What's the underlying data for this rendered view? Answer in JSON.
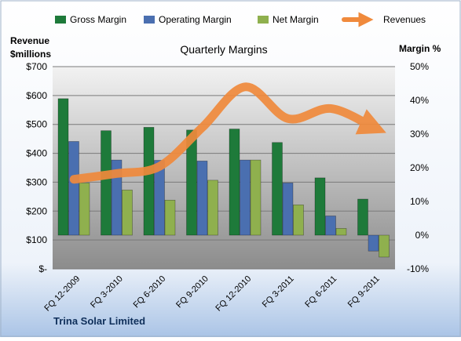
{
  "chart_data": {
    "type": "bar",
    "title": "Quarterly Margins",
    "left_axis_label": [
      "Revenue",
      "$millions"
    ],
    "right_axis_label": "Margin %",
    "company": "Trina Solar Limited",
    "categories": [
      "FQ 12-2009",
      "FQ 3-2010",
      "FQ 6-2010",
      "FQ 9-2010",
      "FQ 12-2010",
      "FQ 3-2011",
      "FQ 6-2011",
      "FQ 9-2011"
    ],
    "left_ticks": [
      "$-",
      "$100",
      "$200",
      "$300",
      "$400",
      "$500",
      "$600",
      "$700"
    ],
    "right_ticks": [
      "-10%",
      "0%",
      "10%",
      "20%",
      "30%",
      "40%",
      "50%"
    ],
    "left_ylim": [
      0,
      700
    ],
    "right_ylim": [
      -10,
      50
    ],
    "series": [
      {
        "name": "Gross Margin",
        "axis": "right",
        "color": "#1e7a3a",
        "values": [
          40.5,
          31.0,
          32.0,
          31.2,
          31.5,
          27.5,
          17.0,
          10.7
        ]
      },
      {
        "name": "Operating Margin",
        "axis": "right",
        "color": "#4a6fb0",
        "values": [
          27.8,
          22.3,
          22.2,
          22.0,
          22.3,
          15.5,
          5.7,
          -4.7
        ]
      },
      {
        "name": "Net Margin",
        "axis": "right",
        "color": "#8fb04e",
        "values": [
          15.5,
          13.4,
          10.4,
          16.3,
          22.3,
          9.0,
          2.0,
          -6.5
        ]
      },
      {
        "name": "Revenues",
        "axis": "left",
        "color": "#f08a3c",
        "values": [
          310,
          330,
          355,
          490,
          630,
          520,
          555,
          490
        ]
      }
    ],
    "grid": true,
    "legend_position": "top"
  }
}
